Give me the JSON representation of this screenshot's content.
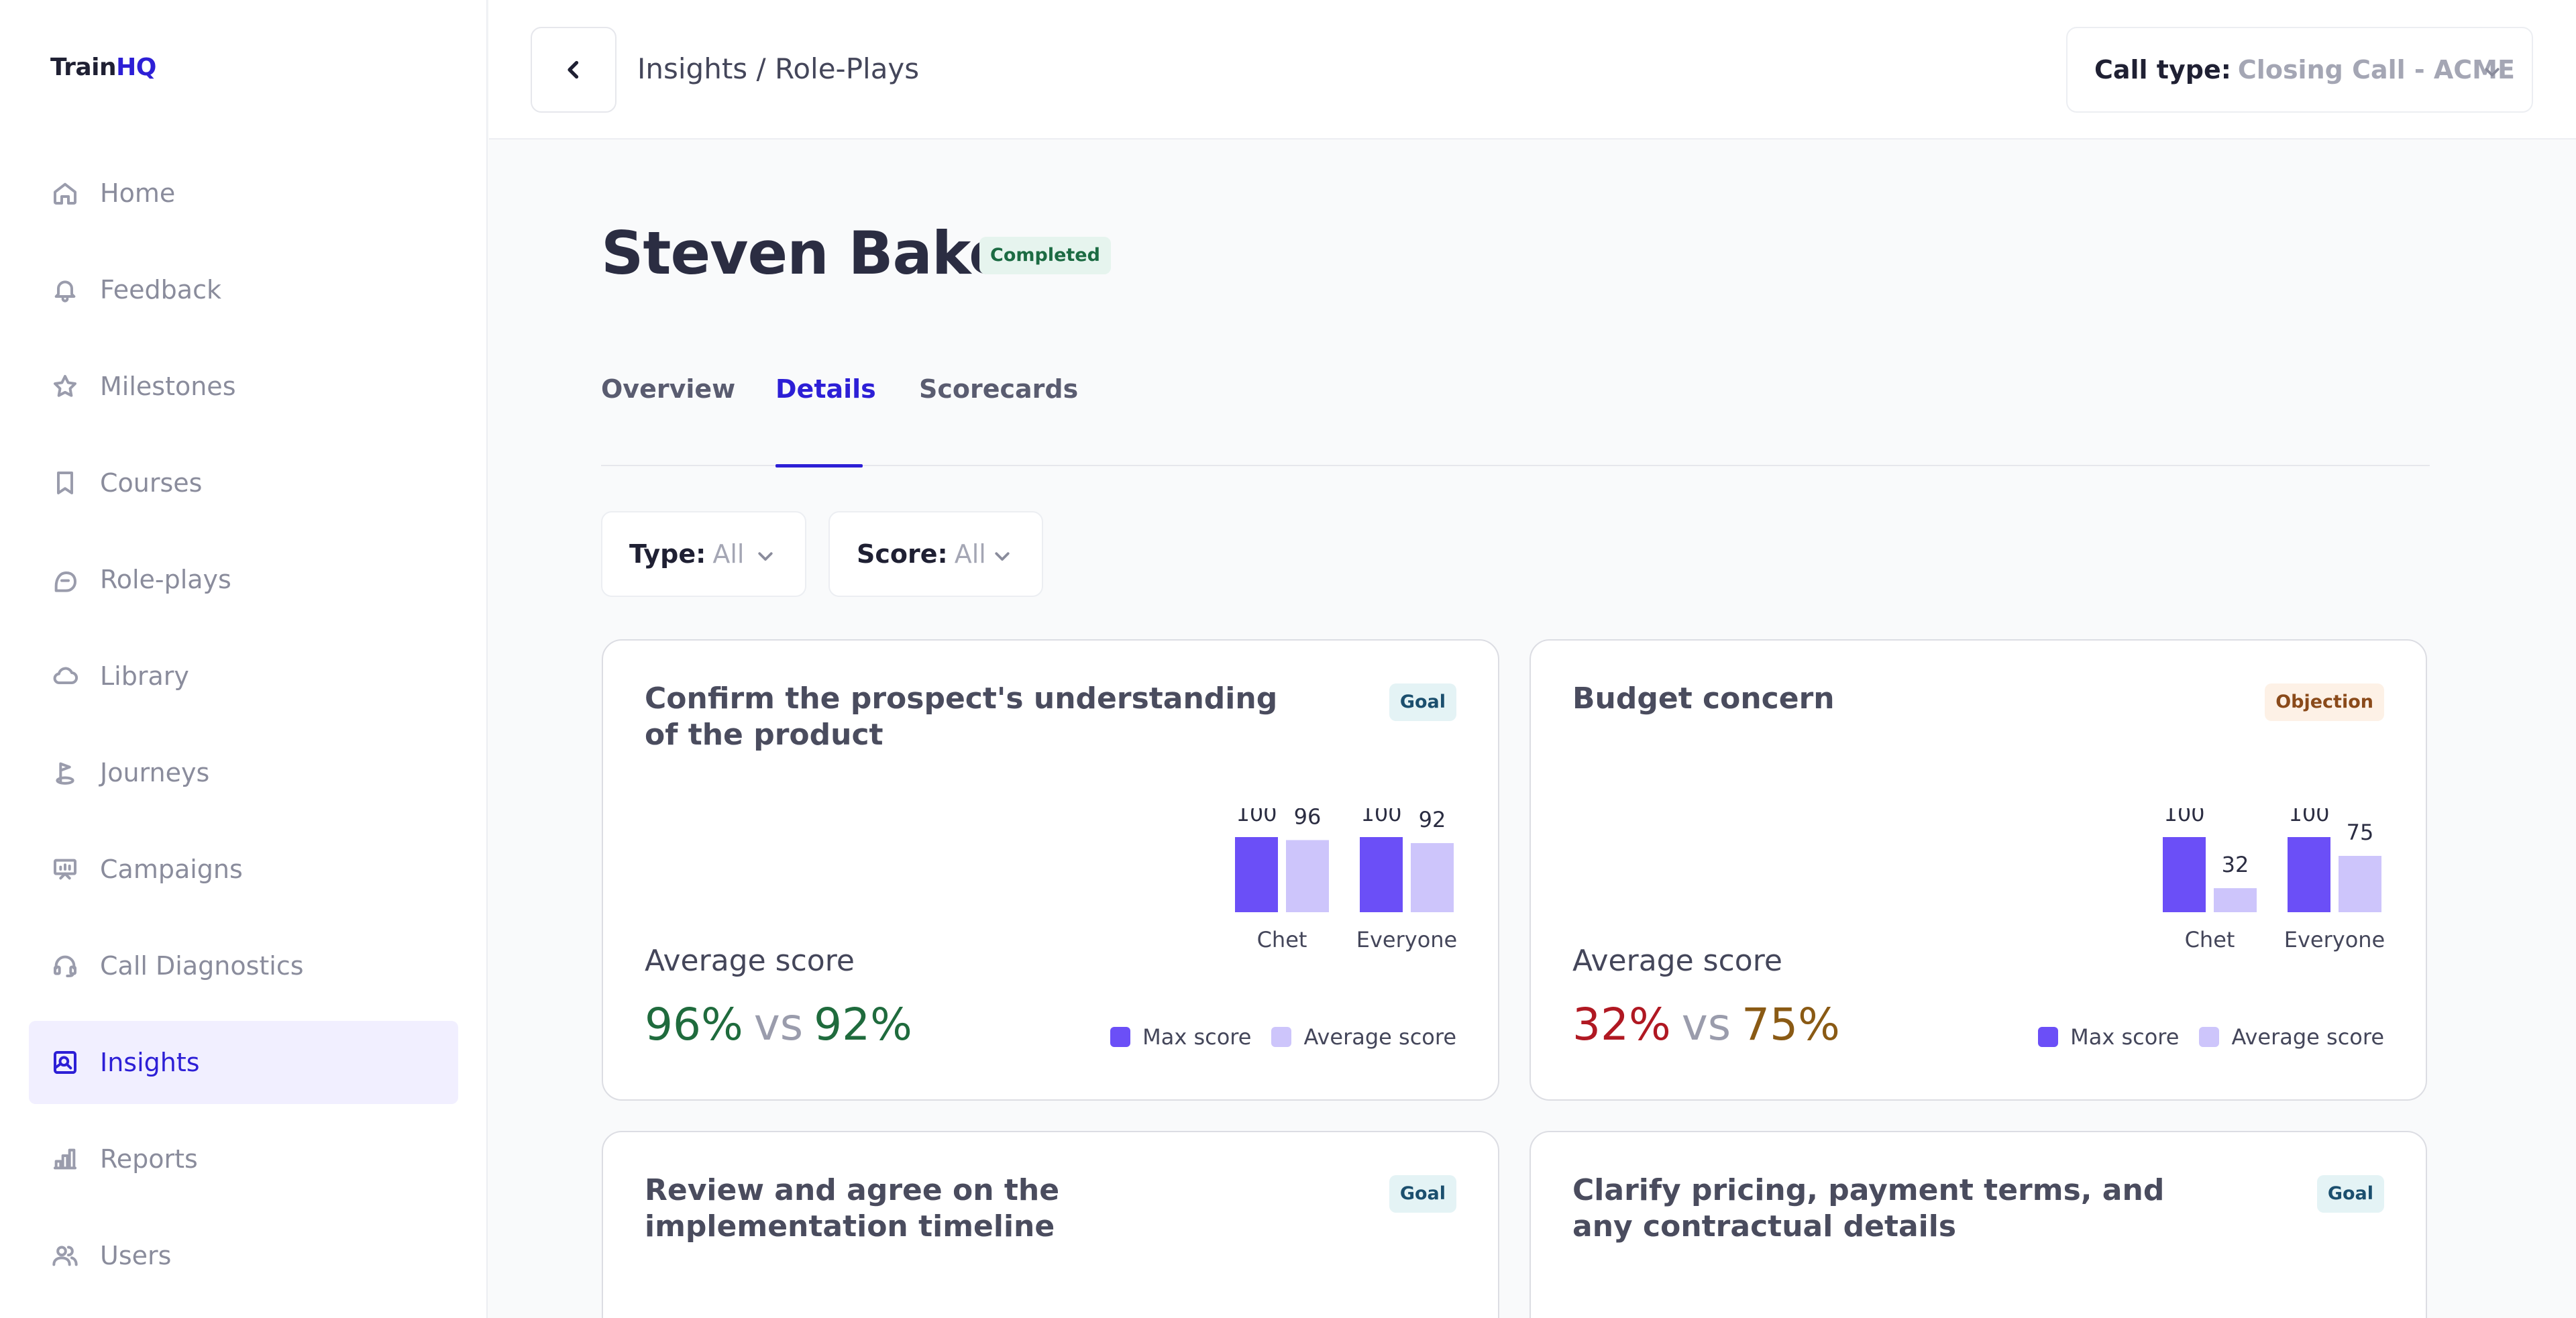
{
  "app": {
    "logo_a": "Train",
    "logo_b": "HQ"
  },
  "sidebar": {
    "items": [
      {
        "label": "Home",
        "icon": "home-icon",
        "active": false
      },
      {
        "label": "Feedback",
        "icon": "bell-icon",
        "active": false
      },
      {
        "label": "Milestones",
        "icon": "star-icon",
        "active": false
      },
      {
        "label": "Courses",
        "icon": "bookmark-icon",
        "active": false
      },
      {
        "label": "Role-plays",
        "icon": "chat-bubbles-icon",
        "active": false
      },
      {
        "label": "Library",
        "icon": "cloud-icon",
        "active": false
      },
      {
        "label": "Journeys",
        "icon": "flag-route-icon",
        "active": false
      },
      {
        "label": "Campaigns",
        "icon": "presentation-icon",
        "active": false
      },
      {
        "label": "Call Diagnostics",
        "icon": "headset-icon",
        "active": false
      },
      {
        "label": "Insights",
        "icon": "insights-icon",
        "active": true
      },
      {
        "label": "Reports",
        "icon": "bar-chart-icon",
        "active": false
      },
      {
        "label": "Users",
        "icon": "users-icon",
        "active": false
      }
    ]
  },
  "topbar": {
    "breadcrumb": "Insights / Role-Plays",
    "call_type_label": "Call type:",
    "call_type_value": "Closing Call - ACME"
  },
  "header": {
    "name": "Steven Baker",
    "status": "Completed"
  },
  "tabs": [
    {
      "label": "Overview",
      "active": false
    },
    {
      "label": "Details",
      "active": true
    },
    {
      "label": "Scorecards",
      "active": false
    }
  ],
  "filters": {
    "type_label": "Type:",
    "type_value": "All",
    "score_label": "Score:",
    "score_value": "All"
  },
  "colors": {
    "accent": "#2d1fd6",
    "max_bar": "#6b4ff7",
    "avg_bar": "#cdc5fb",
    "good": "#1f6b3d",
    "bad": "#b01822",
    "mid": "#8a5a14"
  },
  "cards": [
    {
      "title": "Confirm the prospect's understanding of the product",
      "tag": "Goal",
      "avg_label": "Average score",
      "avg_a": "96%",
      "vs": "vs",
      "avg_b": "92%",
      "legend_max": "Max score",
      "legend_avg": "Average score"
    },
    {
      "title": "Budget concern",
      "tag": "Objection",
      "avg_label": "Average score",
      "avg_a": "32%",
      "vs": "vs",
      "avg_b": "75%",
      "legend_max": "Max score",
      "legend_avg": "Average score"
    },
    {
      "title": "Review and agree on the implementation timeline",
      "tag": "Goal"
    },
    {
      "title": "Clarify pricing, payment terms, and any contractual details",
      "tag": "Goal"
    }
  ],
  "chart_data": [
    {
      "type": "bar",
      "categories": [
        "Chet",
        "Everyone"
      ],
      "series": [
        {
          "name": "Max score",
          "values": [
            100,
            100
          ]
        },
        {
          "name": "Average score",
          "values": [
            96,
            92
          ]
        }
      ],
      "ylim": [
        0,
        100
      ]
    },
    {
      "type": "bar",
      "categories": [
        "Chet",
        "Everyone"
      ],
      "series": [
        {
          "name": "Max score",
          "values": [
            100,
            100
          ]
        },
        {
          "name": "Average score",
          "values": [
            32,
            75
          ]
        }
      ],
      "ylim": [
        0,
        100
      ]
    }
  ]
}
